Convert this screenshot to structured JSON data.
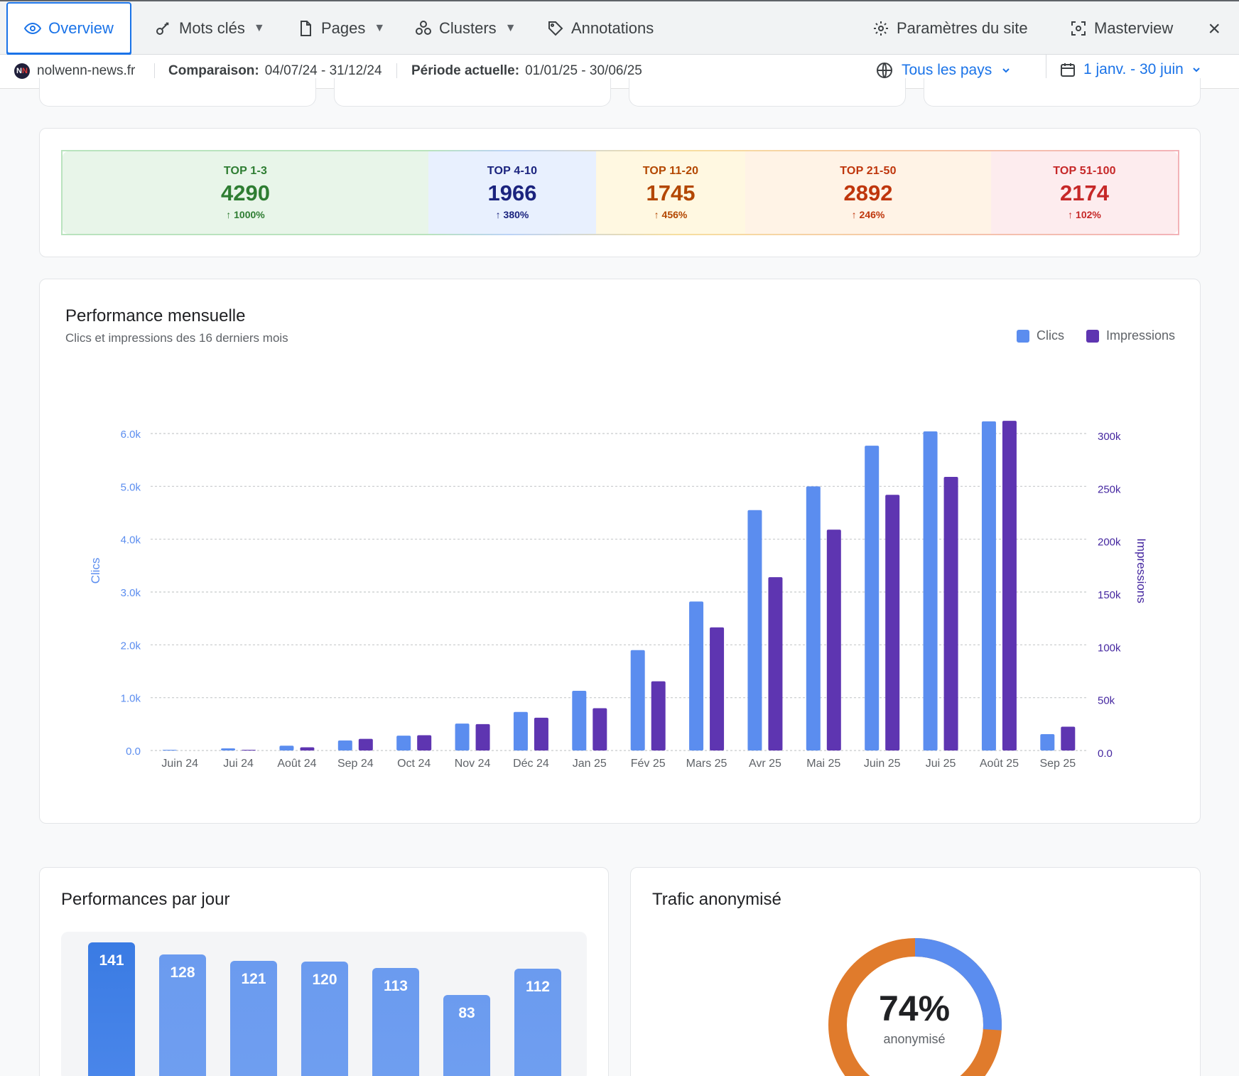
{
  "nav": {
    "tabs": [
      {
        "label": "Overview",
        "icon": "eye-icon",
        "active": true
      },
      {
        "label": "Mots clés",
        "icon": "key-icon",
        "caret": true
      },
      {
        "label": "Pages",
        "icon": "page-icon",
        "caret": true
      },
      {
        "label": "Clusters",
        "icon": "clusters-icon",
        "caret": true
      },
      {
        "label": "Annotations",
        "icon": "tag-icon"
      }
    ],
    "settings_label": "Paramètres du site",
    "masterview_label": "Masterview",
    "close_label": "×",
    "caret_glyph": "▼"
  },
  "subbar": {
    "site": "nolwenn-news.fr",
    "comparison_label": "Comparaison:",
    "comparison_value": "04/07/24 - 31/12/24",
    "current_label": "Période actuelle:",
    "current_value": "01/01/25 - 30/06/25",
    "country": "Tous les pays",
    "date_range": "1 janv. - 30 juin"
  },
  "rankings": [
    {
      "label": "TOP 1-3",
      "value": "4290",
      "change": "1000%",
      "color": "#2e7d32",
      "bg": "#e8f5e9"
    },
    {
      "label": "TOP 4-10",
      "value": "1966",
      "change": "380%",
      "color": "#1a237e",
      "bg": "#e8f0fe"
    },
    {
      "label": "TOP 11-20",
      "value": "1745",
      "change": "456%",
      "color": "#b34700",
      "bg": "#fff8e1"
    },
    {
      "label": "TOP 21-50",
      "value": "2892",
      "change": "246%",
      "color": "#bf360c",
      "bg": "#fff3e6"
    },
    {
      "label": "TOP 51-100",
      "value": "2174",
      "change": "102%",
      "color": "#c62828",
      "bg": "#fdecee"
    }
  ],
  "chart_data": {
    "type": "bar",
    "title": "Performance mensuelle",
    "subtitle": "Clics et impressions des 16 derniers mois",
    "categories": [
      "Juin 24",
      "Jui 24",
      "Août 24",
      "Sep 24",
      "Oct 24",
      "Nov 24",
      "Déc 24",
      "Jan 25",
      "Fév 25",
      "Mars 25",
      "Avr 25",
      "Mai 25",
      "Juin 25",
      "Jui 25",
      "Août 25",
      "Sep 25"
    ],
    "series": [
      {
        "name": "Clics",
        "axis": "left",
        "color": "#5b8def",
        "values": [
          8,
          40,
          90,
          190,
          280,
          510,
          730,
          1130,
          1900,
          2820,
          4550,
          5000,
          5770,
          6040,
          6230,
          310
        ]
      },
      {
        "name": "Impressions",
        "axis": "right",
        "color": "#5e35b1",
        "values": [
          0,
          500,
          3000,
          11000,
          14500,
          25000,
          31000,
          40000,
          65500,
          116500,
          164000,
          209000,
          242000,
          259000,
          312000,
          22500
        ]
      }
    ],
    "ylabel_left": "Clics",
    "ylabel_right": "Impressions",
    "ylim_left": [
      0,
      6000
    ],
    "ylim_right": [
      0,
      300000
    ],
    "yticks_left": [
      "0.0",
      "1.0k",
      "2.0k",
      "3.0k",
      "4.0k",
      "5.0k",
      "6.0k"
    ],
    "yticks_right": [
      "0.0",
      "50k",
      "100k",
      "150k",
      "200k",
      "250k",
      "300k"
    ],
    "grid": true,
    "legend": "top-right"
  },
  "daily": {
    "title": "Performances par jour",
    "values": [
      141,
      128,
      121,
      120,
      113,
      83,
      112
    ]
  },
  "anon": {
    "title": "Trafic anonymisé",
    "percent_label": "74%",
    "percent": 74,
    "caption": "anonymisé",
    "colors": {
      "anonymised": "#e07b2c",
      "known": "#5b8def"
    }
  }
}
